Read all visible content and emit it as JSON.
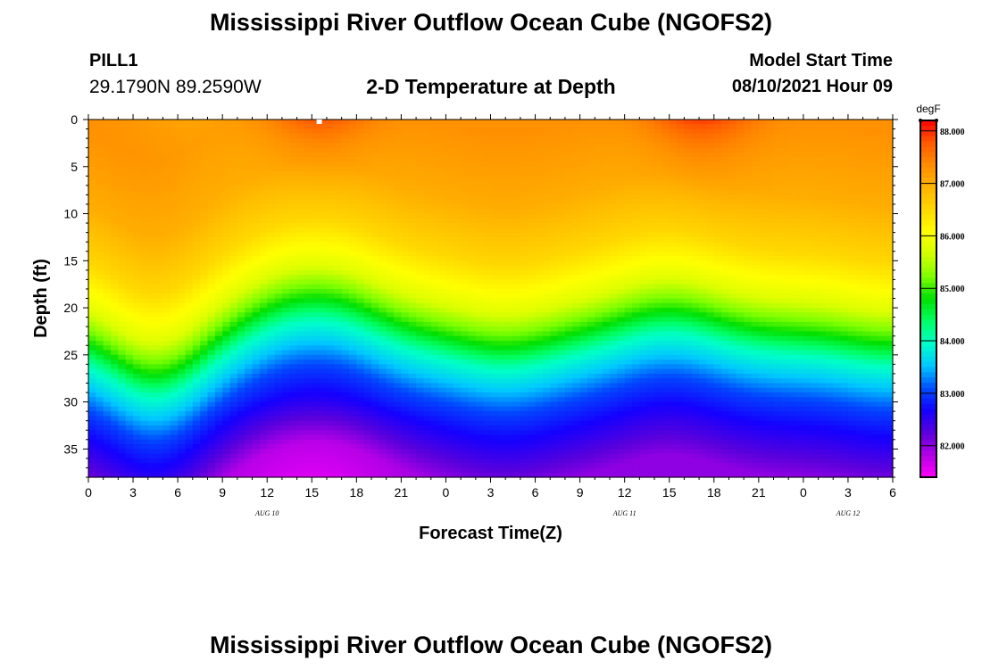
{
  "header": {
    "title": "Mississippi River Outflow Ocean Cube (NGOFS2)",
    "station": "PILL1",
    "coords": "29.1790N  89.2590W",
    "subtitle": "2-D Temperature at Depth",
    "model_start_label": "Model Start Time",
    "model_start_time": "08/10/2021 Hour 09"
  },
  "footer": {
    "title": "Mississippi River Outflow Ocean Cube (NGOFS2)"
  },
  "chart_data": {
    "type": "heatmap",
    "title": "2-D Temperature at Depth",
    "xlabel": "Forecast Time(Z)",
    "ylabel": "Depth (ft)",
    "x_hours_range": [
      0,
      54
    ],
    "x_tick_labels": [
      "0",
      "3",
      "6",
      "9",
      "12",
      "15",
      "18",
      "21",
      "0",
      "3",
      "6",
      "9",
      "12",
      "15",
      "18",
      "21",
      "0",
      "3",
      "6"
    ],
    "date_labels": [
      {
        "text": "AUG 10",
        "at_hour": 12
      },
      {
        "text": "AUG 11",
        "at_hour": 36
      },
      {
        "text": "AUG 12",
        "at_hour": 51
      }
    ],
    "ylim": [
      0,
      38
    ],
    "y_ticks": [
      0,
      5,
      10,
      15,
      20,
      25,
      30,
      35
    ],
    "colorbar": {
      "unit": "degF",
      "range": [
        81.4,
        88.2
      ],
      "ticks": [
        "82.000",
        "83.000",
        "84.000",
        "85.000",
        "86.000",
        "87.000",
        "88.000"
      ],
      "colors": [
        "#ff00ff",
        "#b400e6",
        "#5a00dc",
        "#1400ff",
        "#0050ff",
        "#00c8ff",
        "#00ffc8",
        "#00ff64",
        "#00e000",
        "#7fff00",
        "#d2ff00",
        "#ffff00",
        "#ffd800",
        "#ffb400",
        "#ff8c00",
        "#ff5a00",
        "#ff0000"
      ]
    },
    "temperature_field": {
      "description_units": "degF",
      "surface_warm_peaks": [
        {
          "hour": 15.5,
          "value": 87.9
        },
        {
          "hour": 41.0,
          "value": 88.0
        }
      ],
      "values_by_depth": [
        {
          "depth": 0,
          "value": 87.3
        },
        {
          "depth": 8,
          "value": 87.0
        },
        {
          "depth": 14,
          "value": 86.5
        },
        {
          "depth": 19,
          "value": 85.8
        },
        {
          "depth": 22,
          "value": 85.0
        },
        {
          "depth": 25,
          "value": 84.0
        },
        {
          "depth": 30,
          "value": 83.0
        },
        {
          "depth": 38,
          "value": 82.0
        }
      ]
    }
  }
}
